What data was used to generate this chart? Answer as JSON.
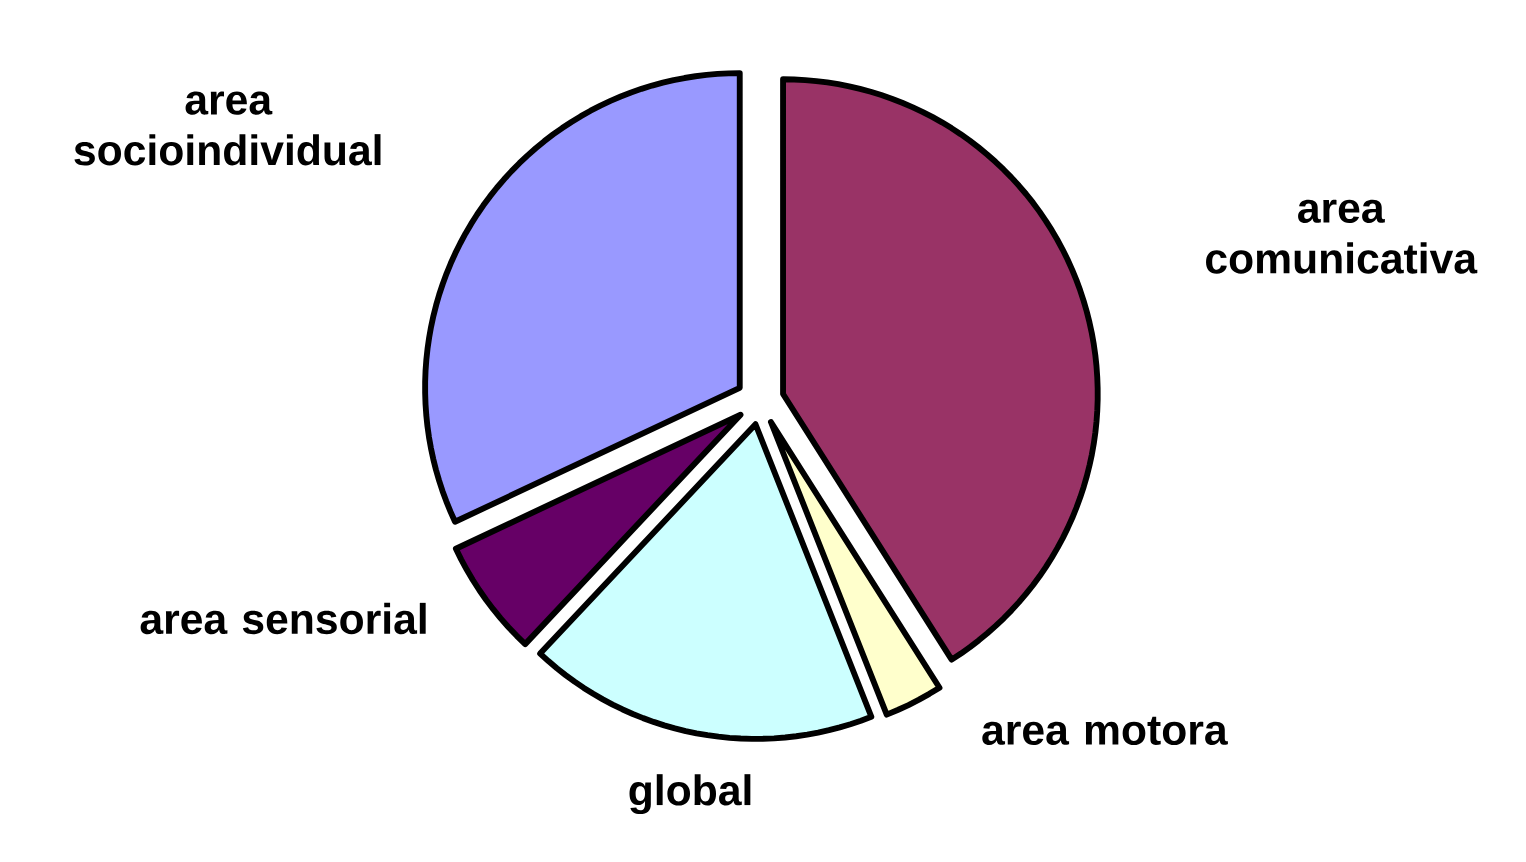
{
  "chart_data": {
    "type": "pie",
    "categories": [
      "area comunicativa",
      "area motora",
      "global",
      "area sensorial",
      "area socioindividual"
    ],
    "values": [
      41,
      3,
      18,
      6,
      32
    ],
    "colors": [
      "#993366",
      "#ffffcc",
      "#ccffff",
      "#660066",
      "#9999ff"
    ]
  }
}
